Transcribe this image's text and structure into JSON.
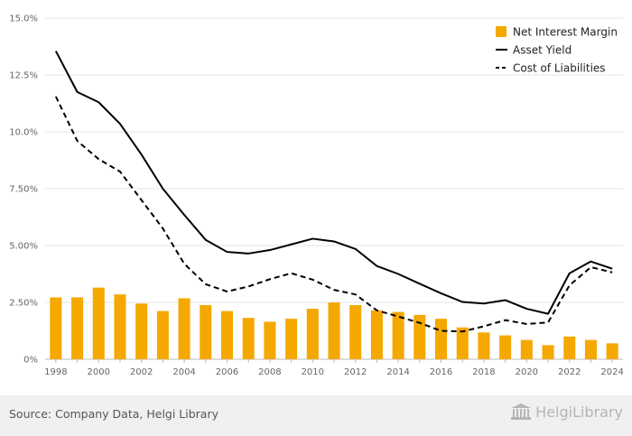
{
  "chart_data": {
    "type": "bar",
    "categories": [
      "1998",
      "1999",
      "2000",
      "2001",
      "2002",
      "2003",
      "2004",
      "2005",
      "2006",
      "2007",
      "2008",
      "2009",
      "2010",
      "2011",
      "2012",
      "2013",
      "2014",
      "2015",
      "2016",
      "2017",
      "2018",
      "2019",
      "2020",
      "2021",
      "2022",
      "2023",
      "2024"
    ],
    "x_tick_labels": [
      "1998",
      "2000",
      "2002",
      "2004",
      "2006",
      "2008",
      "2010",
      "2012",
      "2014",
      "2016",
      "2018",
      "2020",
      "2022",
      "2024"
    ],
    "y_tick_labels": [
      "0%",
      "2.50%",
      "5.00%",
      "7.50%",
      "10.0%",
      "12.5%",
      "15.0%"
    ],
    "ylim": [
      0,
      15
    ],
    "grid": true,
    "legend_position": "top-right",
    "series": [
      {
        "name": "Net Interest Margin",
        "kind": "bar",
        "color": "#f5a800",
        "values": [
          2.72,
          2.72,
          3.15,
          2.85,
          2.45,
          2.12,
          2.68,
          2.38,
          2.12,
          1.82,
          1.65,
          1.78,
          2.22,
          2.5,
          2.38,
          2.15,
          2.08,
          1.95,
          1.78,
          1.4,
          1.18,
          1.05,
          0.85,
          0.62,
          1.0,
          0.85,
          0.7
        ]
      },
      {
        "name": "Asset Yield",
        "kind": "line",
        "color": "#000000",
        "values": [
          13.55,
          11.75,
          11.3,
          10.35,
          9.0,
          7.5,
          6.35,
          5.25,
          4.72,
          4.65,
          4.8,
          5.05,
          5.3,
          5.18,
          4.85,
          4.1,
          3.75,
          3.32,
          2.9,
          2.52,
          2.45,
          2.6,
          2.22,
          2.0,
          3.78,
          4.3,
          3.98
        ]
      },
      {
        "name": "Cost of Liabilities",
        "kind": "line-dashed",
        "color": "#000000",
        "values": [
          11.55,
          9.6,
          8.8,
          8.25,
          7.0,
          5.75,
          4.2,
          3.3,
          2.98,
          3.2,
          3.52,
          3.78,
          3.5,
          3.05,
          2.85,
          2.15,
          1.88,
          1.6,
          1.25,
          1.22,
          1.45,
          1.72,
          1.55,
          1.62,
          3.25,
          4.05,
          3.82
        ]
      }
    ]
  },
  "footer": {
    "source": "Source: Company Data, Helgi Library",
    "logo_text": "HelgiLibrary"
  },
  "icons": {
    "logo": "library-building-icon"
  }
}
